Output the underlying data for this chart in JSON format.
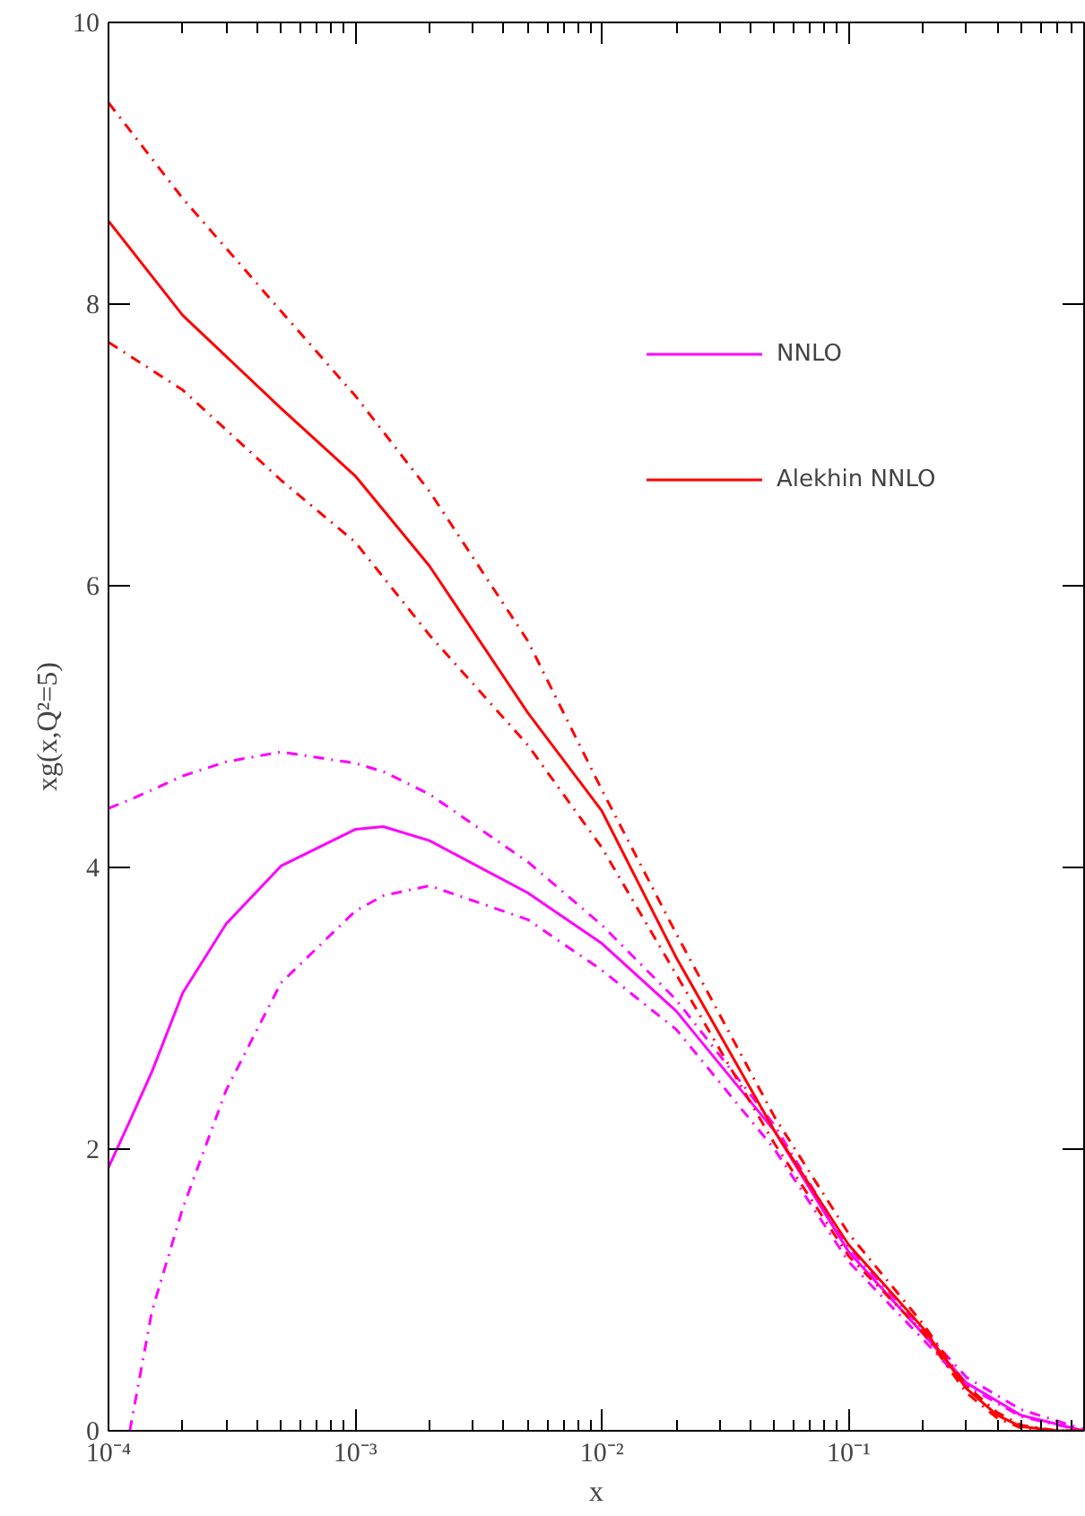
{
  "chart_data": {
    "type": "line",
    "xlabel": "x",
    "ylabel": "xg(x,Q²=5)",
    "log": "x",
    "legend": "top right",
    "grid": false,
    "xlim": [
      0.0001,
      0.9
    ],
    "ylim": [
      0,
      10
    ],
    "xticks": [
      {
        "value": 0.0001,
        "label": "10⁻⁴"
      },
      {
        "value": 0.0002,
        "label": null
      },
      {
        "value": 0.0003,
        "label": null
      },
      {
        "value": 0.0004,
        "label": null
      },
      {
        "value": 0.0005,
        "label": null
      },
      {
        "value": 0.0006,
        "label": null
      },
      {
        "value": 0.0007,
        "label": null
      },
      {
        "value": 0.0008,
        "label": null
      },
      {
        "value": 0.0009,
        "label": null
      },
      {
        "value": 0.001,
        "label": "10⁻³"
      },
      {
        "value": 0.002,
        "label": null
      },
      {
        "value": 0.003,
        "label": null
      },
      {
        "value": 0.004,
        "label": null
      },
      {
        "value": 0.005,
        "label": null
      },
      {
        "value": 0.006,
        "label": null
      },
      {
        "value": 0.007,
        "label": null
      },
      {
        "value": 0.008,
        "label": null
      },
      {
        "value": 0.009,
        "label": null
      },
      {
        "value": 0.01,
        "label": "10⁻²"
      },
      {
        "value": 0.02,
        "label": null
      },
      {
        "value": 0.03,
        "label": null
      },
      {
        "value": 0.04,
        "label": null
      },
      {
        "value": 0.05,
        "label": null
      },
      {
        "value": 0.06,
        "label": null
      },
      {
        "value": 0.07,
        "label": null
      },
      {
        "value": 0.08,
        "label": null
      },
      {
        "value": 0.09,
        "label": null
      },
      {
        "value": 0.1,
        "label": "10⁻¹"
      },
      {
        "value": 0.2,
        "label": null
      },
      {
        "value": 0.3,
        "label": null
      },
      {
        "value": 0.4,
        "label": null
      },
      {
        "value": 0.5,
        "label": null
      },
      {
        "value": 0.6,
        "label": null
      },
      {
        "value": 0.7,
        "label": null
      },
      {
        "value": 0.8,
        "label": null
      },
      {
        "value": 0.9,
        "label": null
      }
    ],
    "yticks": [
      0,
      2,
      4,
      6,
      8,
      10
    ],
    "series": [
      {
        "name": "NNLO",
        "color": "#ff00ff",
        "x": [
          0.0001,
          0.000122,
          0.00015,
          0.0002,
          0.0003,
          0.0005,
          0.001,
          0.0013,
          0.002,
          0.005,
          0.01,
          0.02,
          0.05,
          0.1,
          0.2,
          0.3,
          0.5,
          0.9
        ],
        "values": [
          1.87,
          2.2,
          2.55,
          3.11,
          3.6,
          4.01,
          4.27,
          4.29,
          4.19,
          3.82,
          3.46,
          2.98,
          2.13,
          1.27,
          0.69,
          0.34,
          0.11,
          0.0
        ]
      },
      {
        "color": "#ff00ff",
        "line_style": "dashed",
        "x": [
          0.0001,
          0.000122,
          0.00015,
          0.0002,
          0.0003,
          0.0005,
          0.001,
          0.0013,
          0.002,
          0.005,
          0.01,
          0.02,
          0.05,
          0.1,
          0.2,
          0.3,
          0.5,
          0.9
        ],
        "values": [
          4.42,
          4.48,
          4.55,
          4.65,
          4.75,
          4.82,
          4.74,
          4.68,
          4.52,
          4.04,
          3.59,
          3.06,
          2.17,
          1.3,
          0.72,
          0.38,
          0.15,
          0.01
        ]
      },
      {
        "color": "#ff00ff",
        "line_style": "dashed",
        "x": [
          0.000122,
          0.00015,
          0.0002,
          0.0003,
          0.0005,
          0.001,
          0.0013,
          0.002,
          0.005,
          0.01,
          0.02,
          0.05,
          0.1,
          0.2,
          0.3,
          0.5,
          0.9
        ],
        "values": [
          0.0,
          0.85,
          1.58,
          2.42,
          3.18,
          3.69,
          3.8,
          3.87,
          3.63,
          3.27,
          2.85,
          2.0,
          1.2,
          0.65,
          0.32,
          0.1,
          0.0
        ]
      },
      {
        "name": "Alekhin NNLO",
        "color": "#ff0000",
        "x": [
          0.0001,
          0.0002,
          0.0005,
          0.001,
          0.002,
          0.005,
          0.01,
          0.02,
          0.05,
          0.1,
          0.2,
          0.3,
          0.4,
          0.5,
          0.7,
          0.9
        ],
        "values": [
          8.59,
          7.92,
          7.26,
          6.78,
          6.14,
          5.1,
          4.4,
          3.36,
          2.13,
          1.32,
          0.73,
          0.3,
          0.11,
          0.03,
          0.0,
          0.0
        ]
      },
      {
        "color": "#ff0000",
        "line_style": "dashed",
        "x": [
          0.0001,
          0.0002,
          0.0005,
          0.001,
          0.002,
          0.005,
          0.01,
          0.02,
          0.05,
          0.1,
          0.2,
          0.3,
          0.4,
          0.5,
          0.7,
          0.9
        ],
        "values": [
          9.43,
          8.75,
          7.95,
          7.35,
          6.67,
          5.61,
          4.55,
          3.53,
          2.23,
          1.4,
          0.76,
          0.32,
          0.13,
          0.04,
          0.0,
          0.0
        ]
      },
      {
        "color": "#ff0000",
        "line_style": "dashed",
        "x": [
          0.0001,
          0.0002,
          0.0005,
          0.001,
          0.002,
          0.005,
          0.01,
          0.02,
          0.05,
          0.1,
          0.2,
          0.3,
          0.4,
          0.5,
          0.7,
          0.9
        ],
        "values": [
          7.73,
          7.39,
          6.75,
          6.31,
          5.65,
          4.87,
          4.14,
          3.24,
          2.04,
          1.24,
          0.7,
          0.27,
          0.09,
          0.02,
          0.0,
          0.0
        ]
      }
    ]
  }
}
